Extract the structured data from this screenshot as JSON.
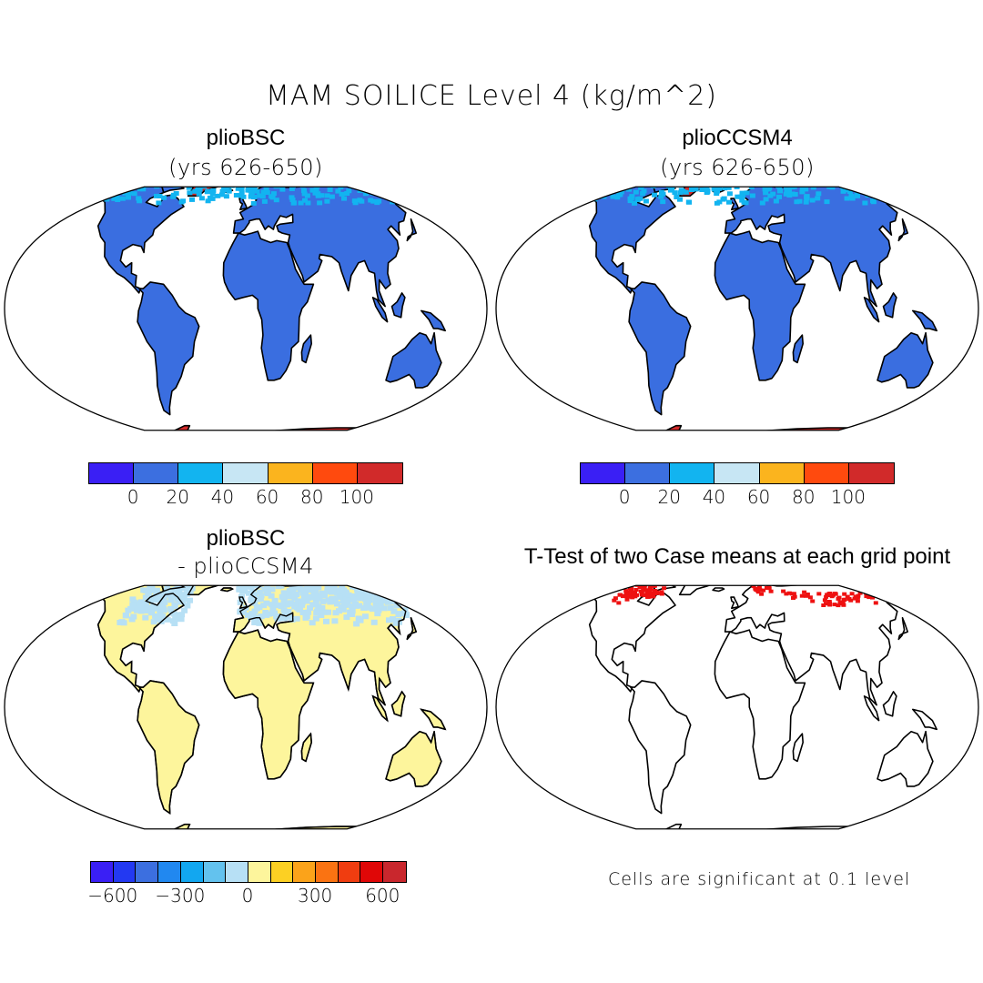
{
  "title": "MAM SOILICE Level 4 (kg/m^2)",
  "panels": [
    {
      "id": "p1",
      "title": "plioBSC",
      "subtitle": "(yrs 626-650)",
      "fill": "land-blue"
    },
    {
      "id": "p2",
      "title": "plioCCSM4",
      "subtitle": "(yrs 626-650)",
      "fill": "land-blue"
    },
    {
      "id": "p3",
      "title": "plioBSC",
      "subtitle": "- plioCCSM4",
      "fill": "difference"
    },
    {
      "id": "p4",
      "title": "T-Test of two Case means at each grid point",
      "subtitle": "",
      "fill": "significance"
    }
  ],
  "colorbar_abs": {
    "colors": [
      "#3a1ff5",
      "#3c6fe0",
      "#12b4f0",
      "#c7e6f4",
      "#fbb41e",
      "#ff4a0e",
      "#d12a2a"
    ],
    "ticks": [
      "0",
      "20",
      "40",
      "60",
      "80",
      "100"
    ]
  },
  "colorbar_diff": {
    "colors": [
      "#3a1ff5",
      "#2339f2",
      "#3c6fe0",
      "#2188f0",
      "#12a7f0",
      "#63c2ee",
      "#b7e0f5",
      "#fdf59c",
      "#fcd023",
      "#fba31a",
      "#fa7312",
      "#f03d10",
      "#e00707",
      "#c9272d"
    ],
    "ticks": [
      "-600",
      "-300",
      "0",
      "300",
      "600"
    ]
  },
  "significance_note": "Cells are significant at 0.1 level",
  "map_colors": {
    "ocean": "#ffffff",
    "land_abs": "#3a6ee0",
    "land_abs_north": "#12b4f0",
    "antarctica_abs": "#d12a2a",
    "greenland_abs": "#d12a2a",
    "land_diff": "#fdf59c",
    "land_diff_north": "#b7e0f5",
    "significant": "#ee1111"
  }
}
